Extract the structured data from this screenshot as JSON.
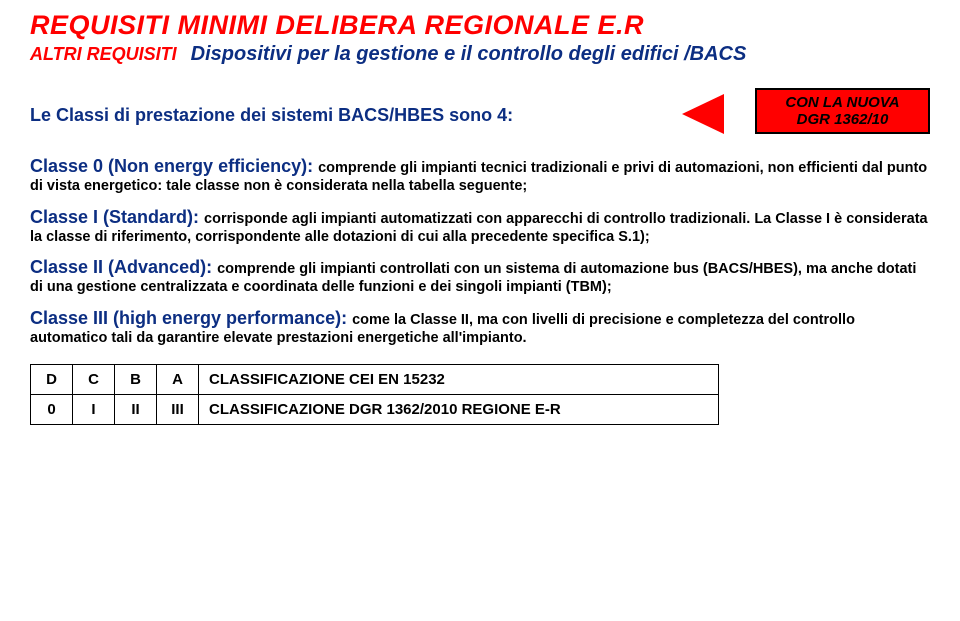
{
  "title": "REQUISITI MINIMI DELIBERA REGIONALE E.R",
  "subtitle_left": "ALTRI REQUISITI",
  "subtitle_right_prefix": "Dispositivi per la gestione e il controllo degli edifici ",
  "subtitle_right_suffix": "/BACS",
  "classes_intro": "Le Classi di prestazione dei sistemi BACS/HBES sono 4:",
  "callout": {
    "line1": "CON LA NUOVA",
    "line2": "DGR 1362/10",
    "bg_color": "#ff0000",
    "border_color": "#000000"
  },
  "class0": {
    "label": "Classe 0 (Non energy efficiency): ",
    "body": "comprende gli impianti tecnici tradizionali e privi di automazioni, non efficienti dal punto di vista energetico: tale classe non è considerata nella tabella seguente;"
  },
  "class1": {
    "label": "Classe I (Standard): ",
    "body": "corrisponde agli impianti automatizzati con apparecchi di controllo tradizionali. La Classe I è considerata la classe di riferimento, corrispondente alle dotazioni di cui alla precedente specifica S.1);"
  },
  "class2": {
    "label": "Classe II (Advanced): ",
    "body": "comprende gli impianti controllati con un sistema di automazione bus (BACS/HBES), ma anche dotati di una gestione centralizzata e coordinata delle funzioni e dei singoli impianti (TBM);"
  },
  "class3": {
    "label": "Classe III (high energy performance): ",
    "body": "come la Classe II, ma con livelli di precisione e completezza del controllo automatico tali da garantire elevate prestazioni energetiche all'impianto."
  },
  "table": {
    "row1": {
      "c0": "D",
      "c1": "C",
      "c2": "B",
      "c3": "A",
      "label": "CLASSIFICAZIONE CEI EN 15232"
    },
    "row2": {
      "c0": "0",
      "c1": "I",
      "c2": "II",
      "c3": "III",
      "label": "CLASSIFICAZIONE DGR 1362/2010 REGIONE E-R"
    }
  },
  "colors": {
    "red": "#ff0000",
    "blue": "#0c2e82",
    "black": "#000000"
  }
}
